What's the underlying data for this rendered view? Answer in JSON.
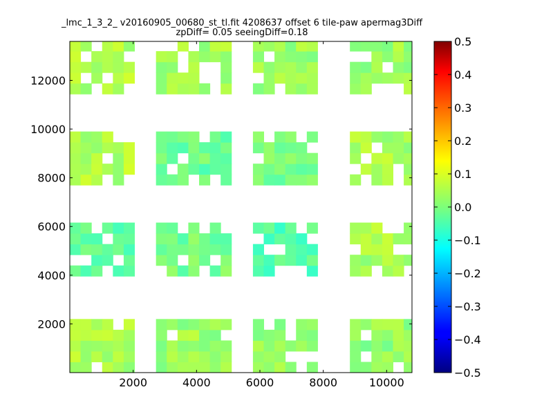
{
  "chart_data": {
    "type": "heatmap",
    "title": "_lmc_1_3_2_ v20160905_00680_st_tl.fit 4208637 offset 6 tile-paw apermag3Diff",
    "subtitle": "zpDiff= 0.05 seeingDiff=0.18",
    "xlim": [
      0,
      10800
    ],
    "ylim": [
      0,
      13600
    ],
    "xticks": [
      2000,
      4000,
      6000,
      8000,
      10000
    ],
    "yticks": [
      2000,
      4000,
      6000,
      8000,
      10000,
      12000
    ],
    "xtick_labels": [
      "2000",
      "4000",
      "6000",
      "8000",
      "10000"
    ],
    "ytick_labels": [
      "2000",
      "4000",
      "6000",
      "8000",
      "10000",
      "12000"
    ],
    "colorbar": {
      "colormap": "jet",
      "range": [
        -0.5,
        0.5
      ],
      "ticks": [
        0.5,
        0.4,
        0.3,
        0.2,
        0.1,
        0.0,
        -0.1,
        -0.2,
        -0.3,
        -0.4,
        -0.5
      ],
      "tick_labels": [
        "0.5",
        "0.4",
        "0.3",
        "0.2",
        "0.1",
        "0.0",
        "−0.1",
        "−0.2",
        "−0.3",
        "−0.4",
        "−0.5"
      ]
    },
    "cell_size": [
      340,
      440
    ],
    "blocks": [
      {
        "x": [
          0,
          2040
        ],
        "y": [
          0,
          2200
        ],
        "value": 0.04
      },
      {
        "x": [
          2720,
          5100
        ],
        "y": [
          0,
          2200
        ],
        "value": 0.03
      },
      {
        "x": [
          5780,
          7820
        ],
        "y": [
          0,
          2200
        ],
        "value": 0.02
      },
      {
        "x": [
          8840,
          10800
        ],
        "y": [
          0,
          2200
        ],
        "value": 0.02
      },
      {
        "x": [
          0,
          2040
        ],
        "y": [
          3960,
          6160
        ],
        "value": -0.03
      },
      {
        "x": [
          2720,
          5100
        ],
        "y": [
          3960,
          6160
        ],
        "value": -0.01
      },
      {
        "x": [
          5780,
          7820
        ],
        "y": [
          3960,
          6160
        ],
        "value": -0.04
      },
      {
        "x": [
          8840,
          10800
        ],
        "y": [
          3960,
          6160
        ],
        "value": 0.04
      },
      {
        "x": [
          0,
          2040
        ],
        "y": [
          7700,
          9900
        ],
        "value": 0.05
      },
      {
        "x": [
          2720,
          5100
        ],
        "y": [
          7700,
          9900
        ],
        "value": -0.02
      },
      {
        "x": [
          5780,
          7820
        ],
        "y": [
          7700,
          9900
        ],
        "value": -0.01
      },
      {
        "x": [
          8840,
          10800
        ],
        "y": [
          7700,
          9900
        ],
        "value": 0.04
      },
      {
        "x": [
          0,
          2040
        ],
        "y": [
          11440,
          13600
        ],
        "value": 0.05
      },
      {
        "x": [
          2720,
          5100
        ],
        "y": [
          11440,
          13600
        ],
        "value": 0.04
      },
      {
        "x": [
          5780,
          7820
        ],
        "y": [
          11440,
          13600
        ],
        "value": 0.03
      },
      {
        "x": [
          8840,
          10800
        ],
        "y": [
          11440,
          13600
        ],
        "value": 0.03
      }
    ]
  }
}
